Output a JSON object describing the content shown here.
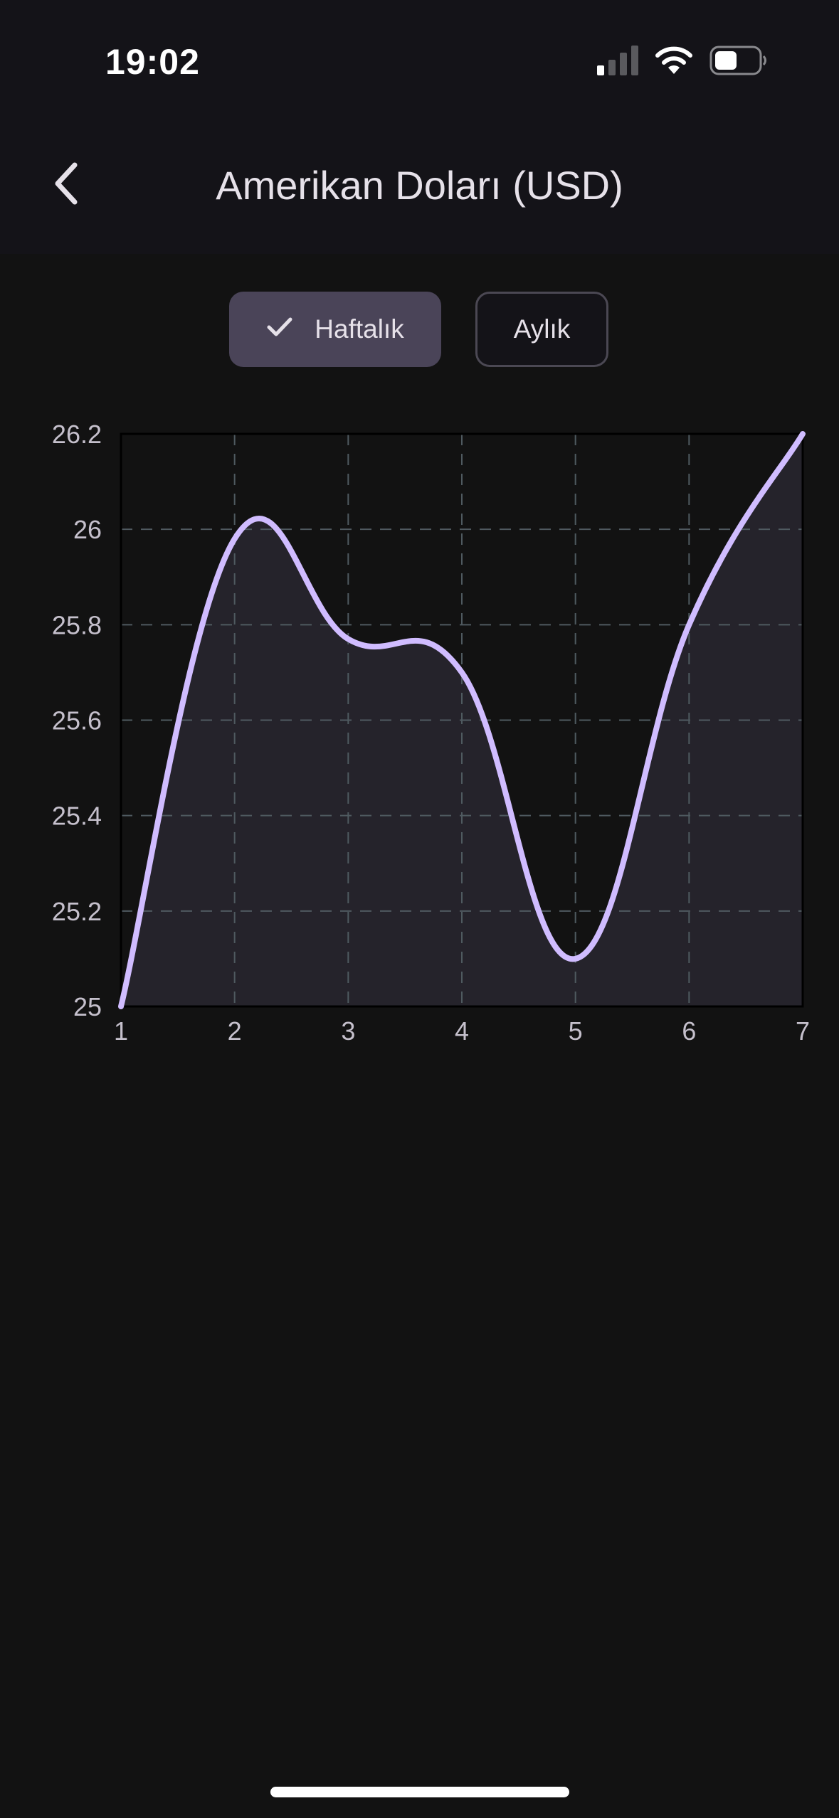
{
  "status_bar": {
    "time": "19:02",
    "signal_icon": "cellular-signal-icon",
    "wifi_icon": "wifi-icon",
    "battery_icon": "battery-icon"
  },
  "header": {
    "back_icon": "chevron-left-icon",
    "title": "Amerikan Doları (USD)"
  },
  "period_toggle": {
    "weekly_label": "Haftalık",
    "monthly_label": "Aylık",
    "selected": "weekly",
    "check_icon": "check-icon"
  },
  "colors": {
    "background": "#121212",
    "header_background": "#141318",
    "selected_button": "#4a4458",
    "line": "#d0bcff",
    "area_fill": "#25232b",
    "grid": "#4f5a60",
    "axis_text": "#c5c0cc"
  },
  "chart_data": {
    "type": "area",
    "x": [
      1,
      2,
      3,
      4,
      5,
      6,
      7
    ],
    "series": [
      {
        "values": [
          25.0,
          25.98,
          25.77,
          25.7,
          25.1,
          25.8,
          26.2
        ]
      }
    ],
    "xticks": [
      "1",
      "2",
      "3",
      "4",
      "5",
      "6",
      "7"
    ],
    "yticks": [
      "25",
      "25.2",
      "25.4",
      "25.6",
      "25.8",
      "26",
      "26.2"
    ],
    "xlim": [
      1,
      7
    ],
    "ylim": [
      25,
      26.2
    ],
    "grid": true,
    "title": "",
    "xlabel": "",
    "ylabel": ""
  }
}
